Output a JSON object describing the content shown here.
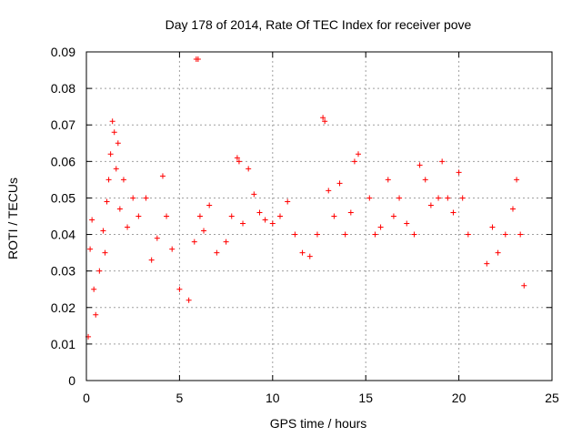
{
  "chart_data": {
    "type": "scatter",
    "title": "Day 178 of 2014, Rate Of TEC Index for receiver pove",
    "xlabel": "GPS time / hours",
    "ylabel": "ROTI / TECUs",
    "xlim": [
      0,
      25
    ],
    "ylim": [
      0,
      0.09
    ],
    "xticks": [
      "0",
      "5",
      "10",
      "15",
      "20",
      "25"
    ],
    "yticks": [
      "0",
      "0.01",
      "0.02",
      "0.03",
      "0.04",
      "0.05",
      "0.06",
      "0.07",
      "0.08",
      "0.09"
    ],
    "grid": true,
    "marker": "plus",
    "color": "#ff0000",
    "series": [
      {
        "points": [
          [
            0.1,
            0.012
          ],
          [
            0.2,
            0.036
          ],
          [
            0.3,
            0.044
          ],
          [
            0.4,
            0.025
          ],
          [
            0.5,
            0.018
          ],
          [
            0.7,
            0.03
          ],
          [
            0.9,
            0.041
          ],
          [
            1.0,
            0.035
          ],
          [
            1.1,
            0.049
          ],
          [
            1.2,
            0.055
          ],
          [
            1.3,
            0.062
          ],
          [
            1.4,
            0.071
          ],
          [
            1.5,
            0.068
          ],
          [
            1.6,
            0.058
          ],
          [
            1.7,
            0.065
          ],
          [
            1.8,
            0.047
          ],
          [
            2.0,
            0.055
          ],
          [
            2.2,
            0.042
          ],
          [
            2.5,
            0.05
          ],
          [
            2.8,
            0.045
          ],
          [
            3.2,
            0.05
          ],
          [
            3.5,
            0.033
          ],
          [
            3.8,
            0.039
          ],
          [
            4.1,
            0.056
          ],
          [
            4.3,
            0.045
          ],
          [
            4.6,
            0.036
          ],
          [
            5.0,
            0.025
          ],
          [
            5.5,
            0.022
          ],
          [
            5.8,
            0.038
          ],
          [
            5.9,
            0.088
          ],
          [
            6.0,
            0.088
          ],
          [
            6.1,
            0.045
          ],
          [
            6.3,
            0.041
          ],
          [
            6.6,
            0.048
          ],
          [
            7.0,
            0.035
          ],
          [
            7.5,
            0.038
          ],
          [
            7.8,
            0.045
          ],
          [
            8.1,
            0.061
          ],
          [
            8.2,
            0.06
          ],
          [
            8.4,
            0.043
          ],
          [
            8.7,
            0.058
          ],
          [
            9.0,
            0.051
          ],
          [
            9.3,
            0.046
          ],
          [
            9.6,
            0.044
          ],
          [
            10.0,
            0.043
          ],
          [
            10.4,
            0.045
          ],
          [
            10.8,
            0.049
          ],
          [
            11.2,
            0.04
          ],
          [
            11.6,
            0.035
          ],
          [
            12.0,
            0.034
          ],
          [
            12.4,
            0.04
          ],
          [
            12.7,
            0.072
          ],
          [
            12.8,
            0.071
          ],
          [
            13.0,
            0.052
          ],
          [
            13.3,
            0.045
          ],
          [
            13.6,
            0.054
          ],
          [
            13.9,
            0.04
          ],
          [
            14.2,
            0.046
          ],
          [
            14.4,
            0.06
          ],
          [
            14.6,
            0.062
          ],
          [
            15.2,
            0.05
          ],
          [
            15.5,
            0.04
          ],
          [
            15.8,
            0.042
          ],
          [
            16.2,
            0.055
          ],
          [
            16.5,
            0.045
          ],
          [
            16.8,
            0.05
          ],
          [
            17.2,
            0.043
          ],
          [
            17.6,
            0.04
          ],
          [
            17.9,
            0.059
          ],
          [
            18.2,
            0.055
          ],
          [
            18.5,
            0.048
          ],
          [
            18.9,
            0.05
          ],
          [
            19.1,
            0.06
          ],
          [
            19.4,
            0.05
          ],
          [
            19.7,
            0.046
          ],
          [
            20.0,
            0.057
          ],
          [
            20.2,
            0.05
          ],
          [
            20.5,
            0.04
          ],
          [
            21.5,
            0.032
          ],
          [
            21.8,
            0.042
          ],
          [
            22.1,
            0.035
          ],
          [
            22.5,
            0.04
          ],
          [
            22.9,
            0.047
          ],
          [
            23.1,
            0.055
          ],
          [
            23.3,
            0.04
          ],
          [
            23.5,
            0.026
          ]
        ]
      }
    ]
  }
}
